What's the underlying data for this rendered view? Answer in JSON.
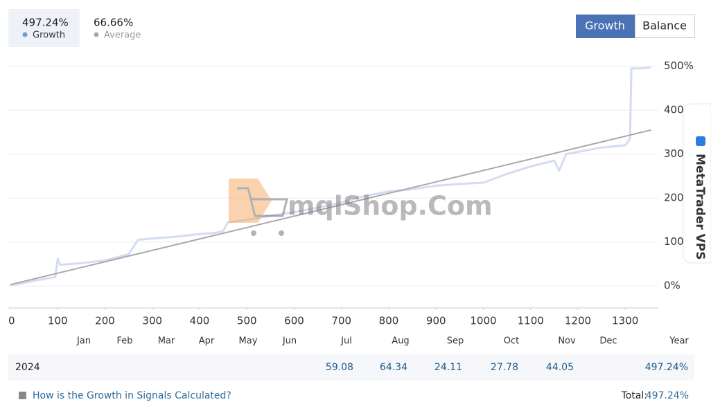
{
  "summary": {
    "growth": "497.24%",
    "average": "66.66%"
  },
  "tabs": [
    "Growth",
    "Balance"
  ],
  "watermark": "mqlShop.Com",
  "side_tab": "MetaTrader VPS",
  "chart_data": {
    "type": "line",
    "series": [
      {
        "name": "Growth",
        "color": "#d3dcf3",
        "legend_color": "#6a9fd8",
        "x": [
          0,
          20,
          50,
          95,
          100,
          105,
          150,
          200,
          250,
          270,
          300,
          350,
          400,
          430,
          450,
          460,
          500,
          550,
          600,
          650,
          700,
          750,
          800,
          850,
          900,
          950,
          1000,
          1050,
          1100,
          1150,
          1160,
          1175,
          1200,
          1250,
          1300,
          1310,
          1313,
          1330,
          1355
        ],
        "values": [
          2,
          5,
          12,
          20,
          62,
          48,
          52,
          58,
          72,
          105,
          108,
          112,
          118,
          120,
          125,
          145,
          150,
          160,
          168,
          178,
          190,
          205,
          215,
          220,
          228,
          232,
          235,
          255,
          272,
          285,
          262,
          300,
          305,
          315,
          320,
          335,
          495,
          495,
          497
        ]
      },
      {
        "name": "Average",
        "color": "#a9a9a9",
        "legend_color": "#a9a9a9",
        "x": [
          0,
          1355
        ],
        "values": [
          3,
          355
        ]
      }
    ],
    "xlim": [
      0,
      1370
    ],
    "xticks": [
      0,
      100,
      200,
      300,
      400,
      500,
      600,
      700,
      800,
      900,
      1000,
      1100,
      1200,
      1300
    ],
    "ylim": [
      -50,
      520
    ],
    "yticks": [
      {
        "value": 0,
        "label": "0%"
      },
      {
        "value": 100,
        "label": "100%"
      },
      {
        "value": 200,
        "label": "200%"
      },
      {
        "value": 300,
        "label": "300%"
      },
      {
        "value": 400,
        "label": "400%"
      },
      {
        "value": 500,
        "label": "500%"
      }
    ],
    "grid": true
  },
  "table": {
    "months": [
      "Jan",
      "Feb",
      "Mar",
      "Apr",
      "May",
      "Jun",
      "Jul",
      "Aug",
      "Sep",
      "Oct",
      "Nov",
      "Dec"
    ],
    "total_header": "Year",
    "row": {
      "year": "2024",
      "values": [
        null,
        null,
        null,
        null,
        null,
        null,
        "59.08",
        "64.34",
        "24.11",
        "27.78",
        "44.05",
        null
      ],
      "total": "497.24%"
    }
  },
  "footer": {
    "link": "How is the Growth in Signals Calculated?",
    "total_label": "Total:",
    "total_value": "497.24%"
  }
}
